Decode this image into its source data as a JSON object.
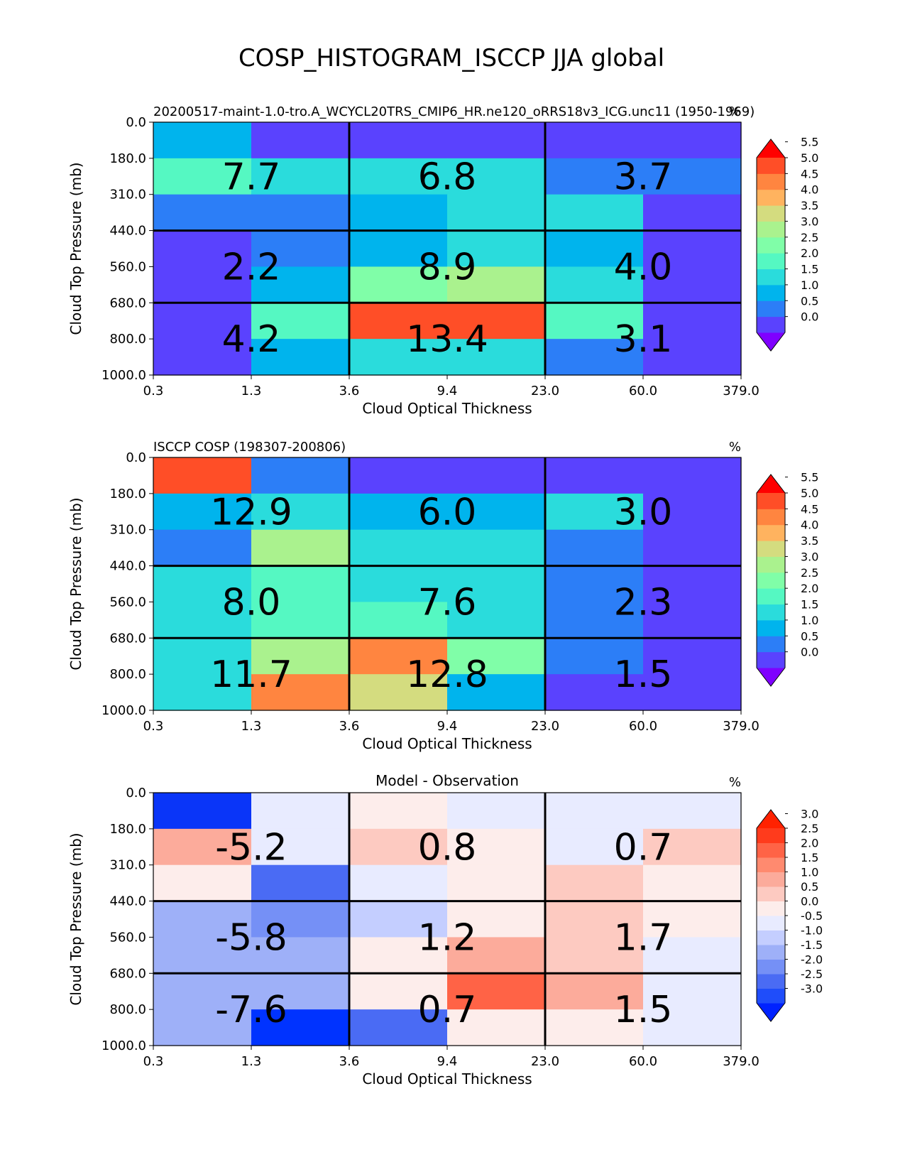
{
  "figure_title": "COSP_HISTOGRAM_ISCCP JJA global",
  "chart_data": [
    {
      "type": "heatmap",
      "title_left": "20200517-maint-1.0-tro.A_WCYCL20TRS_CMIP6_HR.ne120_oRRS18v3_ICG.unc11 (1950-1969)",
      "title_center": "",
      "units": "%",
      "xlabel": "Cloud Optical Thickness",
      "ylabel": "Cloud Top Pressure (mb)",
      "x_ticks": [
        "0.3",
        "1.3",
        "3.6",
        "9.4",
        "23.0",
        "60.0",
        "379.0"
      ],
      "y_ticks": [
        "0.0",
        "180.0",
        "310.0",
        "440.0",
        "560.0",
        "680.0",
        "800.0",
        "1000.0"
      ],
      "colorbar": {
        "colors": [
          "#7f00ff",
          "#5a42fe",
          "#2c7ef7",
          "#00b4ed",
          "#2adcdc",
          "#55f8c2",
          "#80fea8",
          "#aaf28e",
          "#d4dc7f",
          "#ffb35f",
          "#ff8540",
          "#ff4e27",
          "#ff0000"
        ],
        "labels": [
          "0.0",
          "0.5",
          "1.0",
          "1.5",
          "2.0",
          "2.5",
          "3.0",
          "3.5",
          "4.0",
          "4.5",
          "5.0",
          "5.5"
        ]
      },
      "cells": [
        [
          "#00b4ed",
          "#5a42fe",
          "#5a42fe",
          "#5a42fe",
          "#5a42fe",
          "#5a42fe"
        ],
        [
          "#55f8c2",
          "#2adcdc",
          "#2adcdc",
          "#2adcdc",
          "#2c7ef7",
          "#2c7ef7"
        ],
        [
          "#2c7ef7",
          "#2c7ef7",
          "#00b4ed",
          "#2adcdc",
          "#2adcdc",
          "#5a42fe"
        ],
        [
          "#5a42fe",
          "#2c7ef7",
          "#00b4ed",
          "#2adcdc",
          "#00b4ed",
          "#5a42fe"
        ],
        [
          "#5a42fe",
          "#00b4ed",
          "#80fea8",
          "#aaf28e",
          "#2adcdc",
          "#5a42fe"
        ],
        [
          "#5a42fe",
          "#55f8c2",
          "#ff4e27",
          "#ff4e27",
          "#55f8c2",
          "#5a42fe"
        ],
        [
          "#5a42fe",
          "#00b4ed",
          "#2adcdc",
          "#2adcdc",
          "#2c7ef7",
          "#5a42fe"
        ]
      ],
      "block_values": [
        [
          "7.7",
          "6.8",
          "3.7"
        ],
        [
          "2.2",
          "8.9",
          "4.0"
        ],
        [
          "4.2",
          "13.4",
          "3.1"
        ]
      ]
    },
    {
      "type": "heatmap",
      "title_left": "ISCCP COSP (198307-200806)",
      "title_center": "",
      "units": "%",
      "xlabel": "Cloud Optical Thickness",
      "ylabel": "Cloud Top Pressure (mb)",
      "x_ticks": [
        "0.3",
        "1.3",
        "3.6",
        "9.4",
        "23.0",
        "60.0",
        "379.0"
      ],
      "y_ticks": [
        "0.0",
        "180.0",
        "310.0",
        "440.0",
        "560.0",
        "680.0",
        "800.0",
        "1000.0"
      ],
      "colorbar": {
        "colors": [
          "#7f00ff",
          "#5a42fe",
          "#2c7ef7",
          "#00b4ed",
          "#2adcdc",
          "#55f8c2",
          "#80fea8",
          "#aaf28e",
          "#d4dc7f",
          "#ffb35f",
          "#ff8540",
          "#ff4e27",
          "#ff0000"
        ],
        "labels": [
          "0.0",
          "0.5",
          "1.0",
          "1.5",
          "2.0",
          "2.5",
          "3.0",
          "3.5",
          "4.0",
          "4.5",
          "5.0",
          "5.5"
        ]
      },
      "cells": [
        [
          "#ff4e27",
          "#2c7ef7",
          "#5a42fe",
          "#5a42fe",
          "#5a42fe",
          "#5a42fe"
        ],
        [
          "#00b4ed",
          "#2adcdc",
          "#00b4ed",
          "#00b4ed",
          "#2adcdc",
          "#5a42fe"
        ],
        [
          "#2c7ef7",
          "#aaf28e",
          "#2adcdc",
          "#2adcdc",
          "#2c7ef7",
          "#5a42fe"
        ],
        [
          "#2adcdc",
          "#55f8c2",
          "#2adcdc",
          "#2adcdc",
          "#2c7ef7",
          "#5a42fe"
        ],
        [
          "#2adcdc",
          "#55f8c2",
          "#55f8c2",
          "#2adcdc",
          "#2c7ef7",
          "#5a42fe"
        ],
        [
          "#2adcdc",
          "#aaf28e",
          "#ff8540",
          "#80fea8",
          "#2c7ef7",
          "#5a42fe"
        ],
        [
          "#2adcdc",
          "#ff8540",
          "#d4dc7f",
          "#00b4ed",
          "#5a42fe",
          "#5a42fe"
        ]
      ],
      "block_values": [
        [
          "12.9",
          "6.0",
          "3.0"
        ],
        [
          "8.0",
          "7.6",
          "2.3"
        ],
        [
          "11.7",
          "12.8",
          "1.5"
        ]
      ]
    },
    {
      "type": "heatmap",
      "title_left": "",
      "title_center": "Model - Observation",
      "units": "%",
      "xlabel": "Cloud Optical Thickness",
      "ylabel": "Cloud Top Pressure (mb)",
      "x_ticks": [
        "0.3",
        "1.3",
        "3.6",
        "9.4",
        "23.0",
        "60.0",
        "379.0"
      ],
      "y_ticks": [
        "0.0",
        "180.0",
        "310.0",
        "440.0",
        "560.0",
        "680.0",
        "800.0",
        "1000.0"
      ],
      "colorbar": {
        "colors": [
          "#0022ff",
          "#1f4dfa",
          "#4a6bf4",
          "#7590f6",
          "#9eb0f8",
          "#c4ceff",
          "#e8ebff",
          "#fdedeb",
          "#fdcac1",
          "#fcab9b",
          "#ff8a6f",
          "#ff6346",
          "#ff3b1c",
          "#ff2200"
        ],
        "labels": [
          "-3.0",
          "-2.5",
          "-2.0",
          "-1.5",
          "-1.0",
          "-0.5",
          "0.0",
          "0.5",
          "1.0",
          "1.5",
          "2.0",
          "2.5",
          "3.0"
        ]
      },
      "cells": [
        [
          "#0a35f8",
          "#e8ebff",
          "#fdedeb",
          "#e8ebff",
          "#e8ebff",
          "#e8ebff"
        ],
        [
          "#fcab9b",
          "#e8ebff",
          "#fdcac1",
          "#fdedeb",
          "#e8ebff",
          "#fdcac1"
        ],
        [
          "#fdedeb",
          "#4a6bf4",
          "#e8ebff",
          "#fdedeb",
          "#fdcac1",
          "#fdedeb"
        ],
        [
          "#9eb0f8",
          "#7590f6",
          "#c4ceff",
          "#fdedeb",
          "#fdcac1",
          "#fdedeb"
        ],
        [
          "#9eb0f8",
          "#9eb0f8",
          "#fdedeb",
          "#fcab9b",
          "#fdcac1",
          "#e8ebff"
        ],
        [
          "#9eb0f8",
          "#9eb0f8",
          "#fdedeb",
          "#ff6346",
          "#fcab9b",
          "#e8ebff"
        ],
        [
          "#9eb0f8",
          "#0033ff",
          "#4a6bf4",
          "#fdedeb",
          "#fdedeb",
          "#e8ebff"
        ]
      ],
      "block_values": [
        [
          "-5.2",
          "0.8",
          "0.7"
        ],
        [
          "-5.8",
          "1.2",
          "1.7"
        ],
        [
          "-7.6",
          "0.7",
          "1.5"
        ]
      ]
    }
  ]
}
